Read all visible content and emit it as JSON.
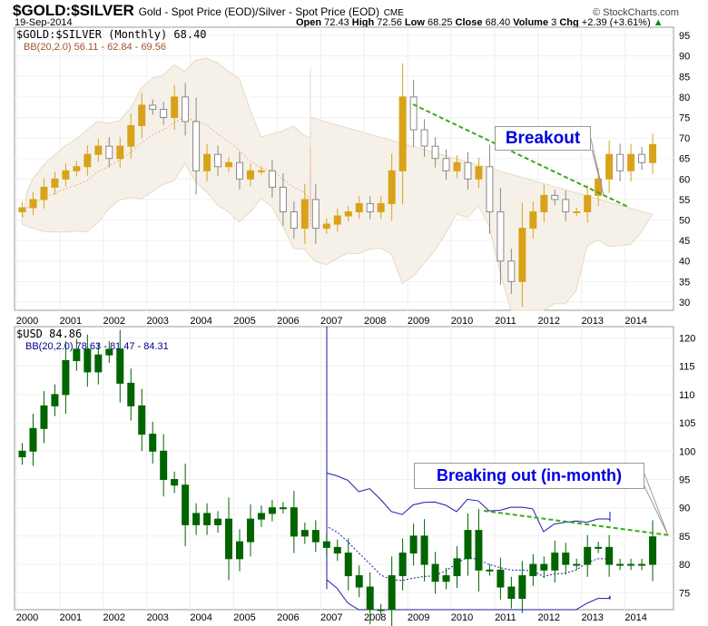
{
  "header": {
    "symbol": "$GOLD:$SILVER",
    "description": "Gold - Spot Price (EOD)/Silver - Spot Price (EOD)",
    "exchange": "CME",
    "date": "19-Sep-2014",
    "copyright": "© StockCharts.com",
    "open_label": "Open",
    "open": "72.43",
    "high_label": "High",
    "high": "72.56",
    "low_label": "Low",
    "low": "68.25",
    "close_label": "Close",
    "close": "68.40",
    "volume_label": "Volume",
    "volume": "3",
    "chg_label": "Chg",
    "chg": "+2.39 (+3.61%)"
  },
  "chart_data": [
    {
      "type": "candlestick",
      "legend": "$GOLD:$SILVER (Monthly) 68.40",
      "indicator": "BB(20,2.0) 56.11 - 62.84 - 69.56",
      "ylim": [
        28,
        97
      ],
      "yticks": [
        30,
        35,
        40,
        45,
        50,
        55,
        60,
        65,
        70,
        75,
        80,
        85,
        90,
        95
      ],
      "xticks": [
        "2000",
        "2001",
        "2002",
        "2003",
        "2004",
        "2005",
        "2006",
        "2007",
        "2008",
        "2009",
        "2010",
        "2011",
        "2012",
        "2013",
        "2014"
      ],
      "x_start": 2000,
      "x_step": 0.25,
      "values": [
        53,
        55,
        58,
        60,
        62,
        63,
        66,
        68,
        65,
        68,
        73,
        78,
        77,
        75,
        80,
        74,
        62,
        66,
        63,
        64,
        60,
        62,
        62,
        58,
        52,
        48,
        55,
        48,
        49,
        51,
        52,
        54,
        52,
        54,
        62,
        80,
        72,
        68,
        65,
        62,
        64,
        60,
        63,
        52,
        40,
        35,
        48,
        52,
        56,
        55,
        52,
        52,
        56,
        60,
        66,
        62,
        66,
        64,
        68.4
      ],
      "annotation": "Breakout",
      "colors": {
        "up": "#d9a21b",
        "down": "#888888",
        "band_fill": "#f6f1e8",
        "band_line": "#e6d9c3",
        "trend": "#3aaa1a"
      }
    },
    {
      "type": "candlestick",
      "legend": "$USD 84.86",
      "indicator": "BB(20,2.0) 78.63 - 81.47 - 84.31",
      "ylim": [
        72,
        122
      ],
      "yticks": [
        75,
        80,
        85,
        90,
        95,
        100,
        105,
        110,
        115,
        120
      ],
      "xticks": [
        "2000",
        "2001",
        "2002",
        "2003",
        "2004",
        "2005",
        "2006",
        "2007",
        "2008",
        "2009",
        "2010",
        "2011",
        "2012",
        "2013",
        "2014"
      ],
      "x_start": 2000,
      "x_step": 0.25,
      "values": [
        100,
        104,
        108,
        110,
        116,
        118,
        114,
        117,
        118,
        112,
        108,
        103,
        100,
        95,
        94,
        87,
        89,
        87,
        88,
        81,
        84,
        88,
        89,
        90,
        90,
        85,
        86,
        84,
        83,
        82,
        78,
        76,
        72,
        72,
        78,
        82,
        85,
        80,
        77,
        78,
        81,
        86,
        79,
        79,
        76,
        74,
        78,
        80,
        79,
        82,
        80,
        80,
        83,
        83,
        80,
        80,
        80,
        80,
        84.86
      ],
      "annotation": "Breaking out (in-month)",
      "colors": {
        "candle": "#006400",
        "band_line": "#1a1aa8",
        "trend": "#3aaa1a"
      }
    }
  ]
}
